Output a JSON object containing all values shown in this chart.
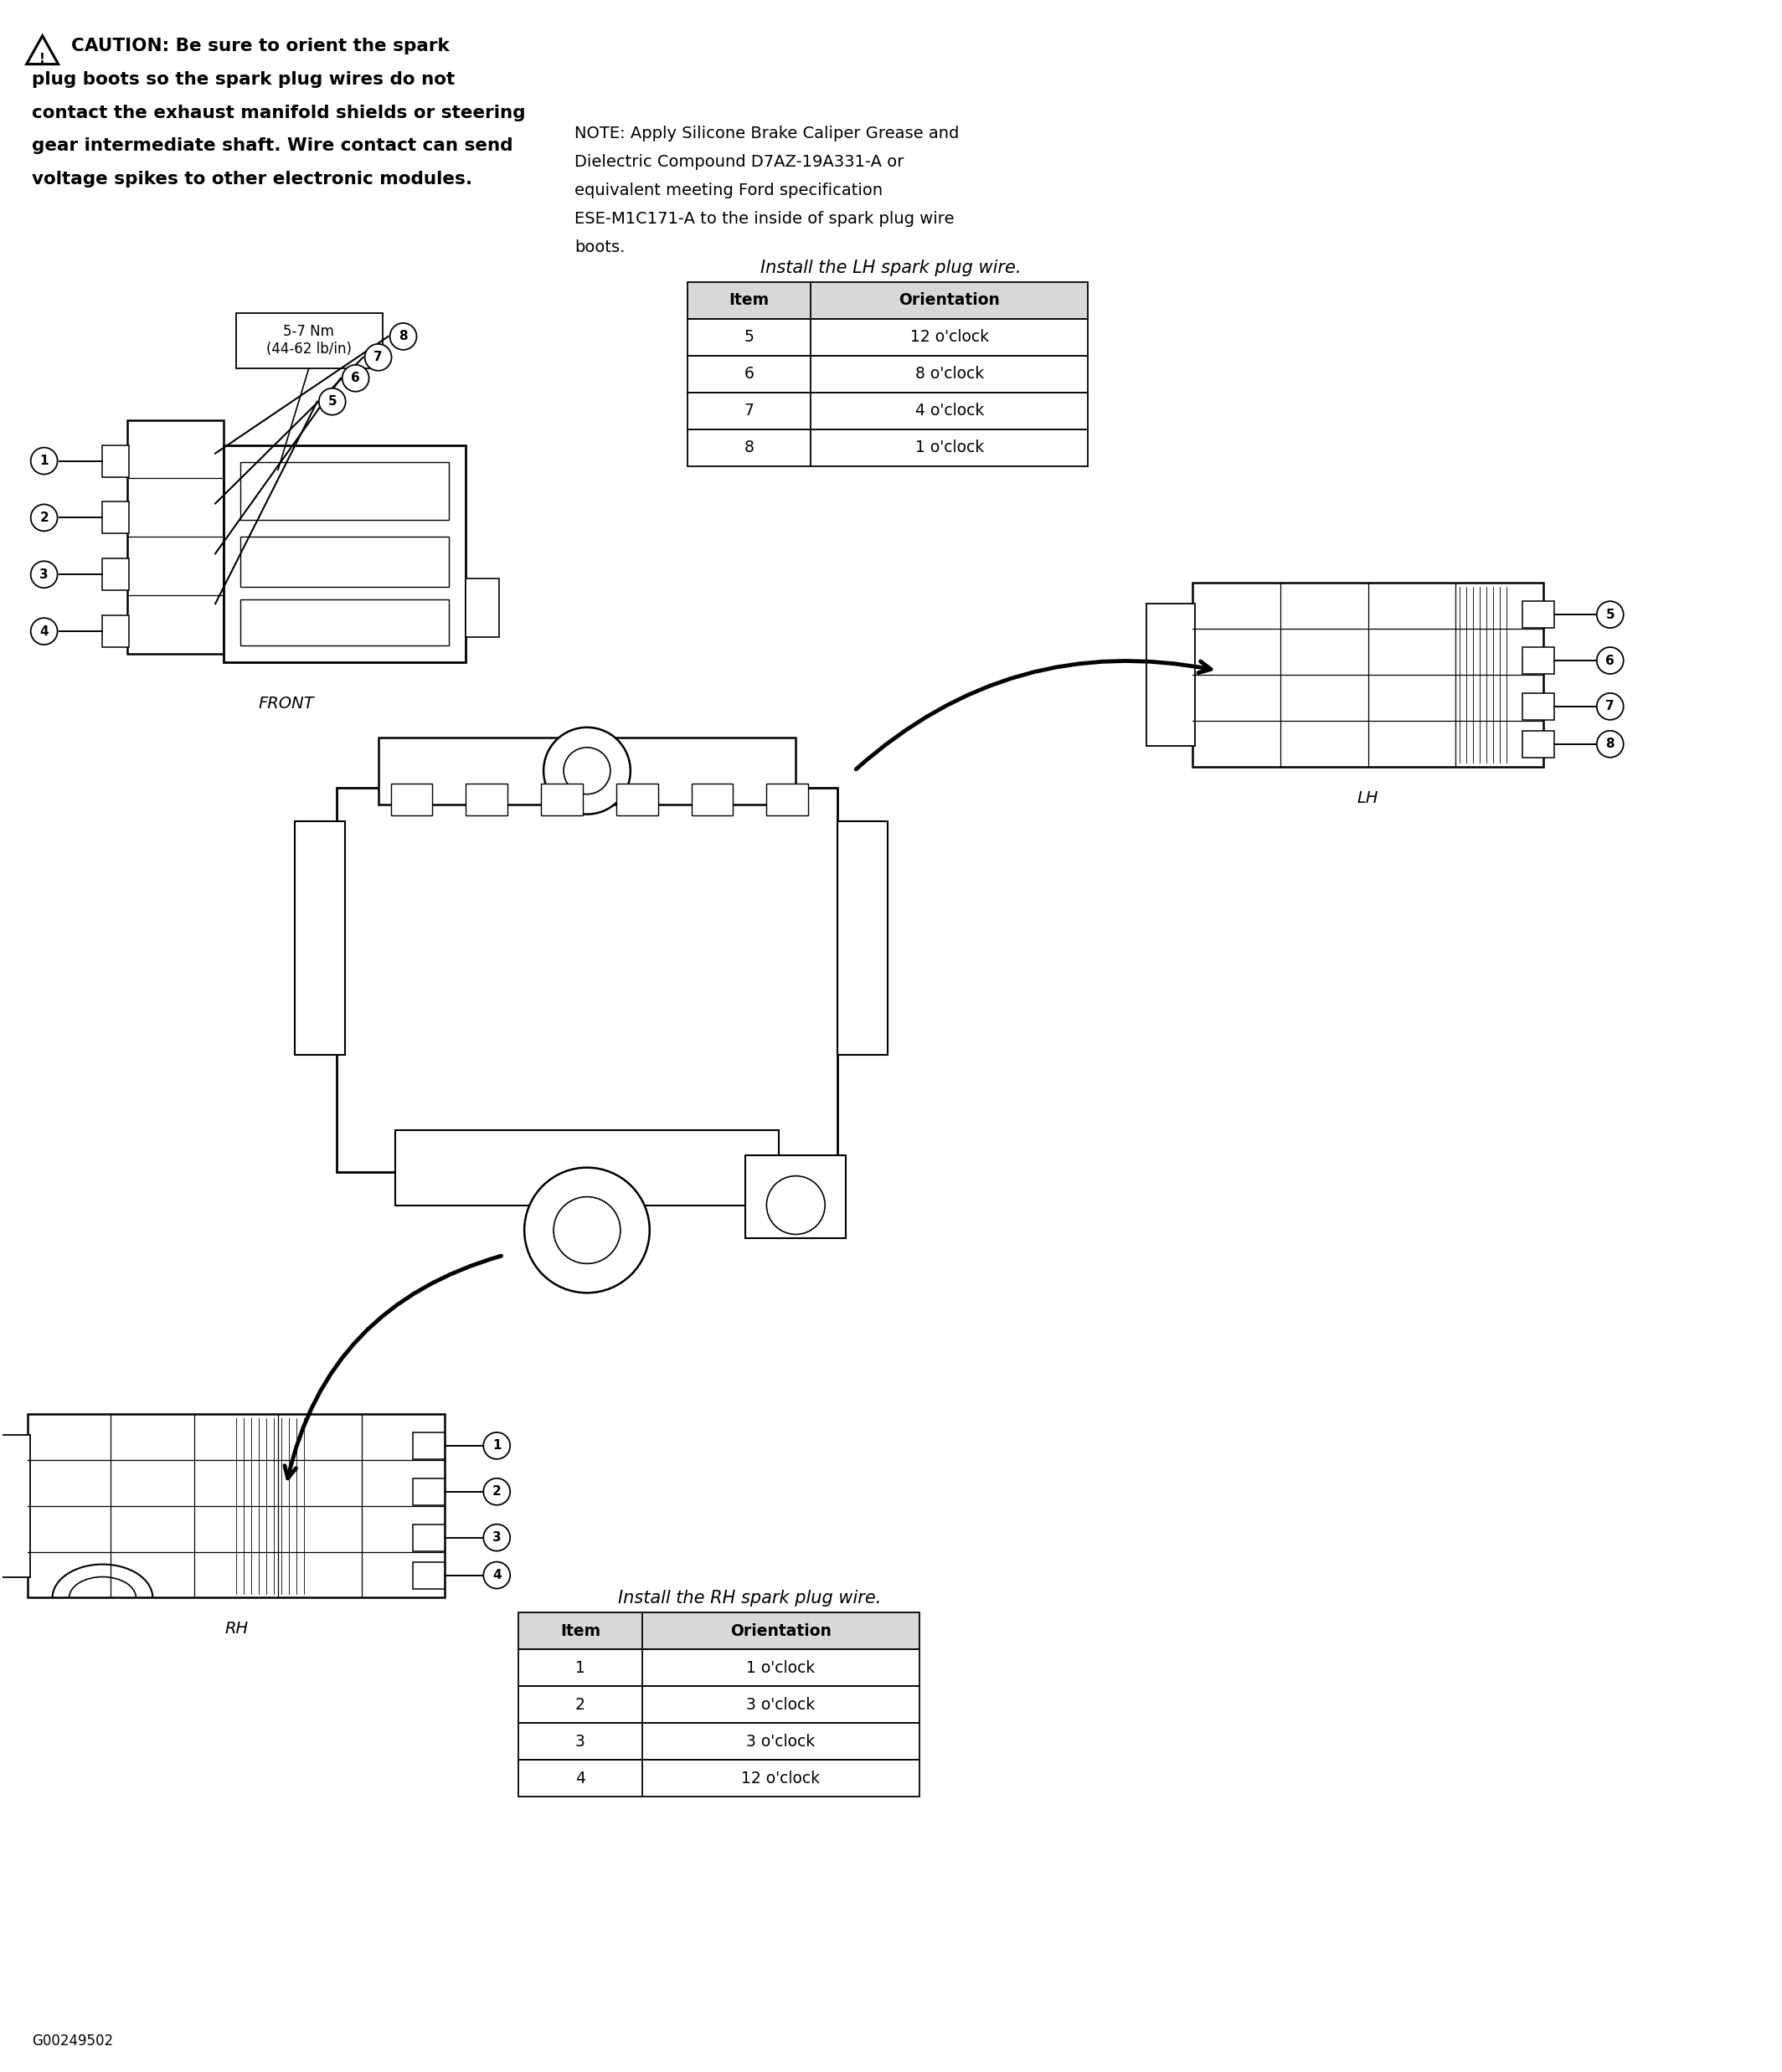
{
  "bg_color": "#ffffff",
  "fig_width": 21.28,
  "fig_height": 24.75,
  "caution_text_lines": [
    "CAUTION: Be sure to orient the spark",
    "plug boots so the spark plug wires do not",
    "contact the exhaust manifold shields or steering",
    "gear intermediate shaft. Wire contact can send",
    "voltage spikes to other electronic modules."
  ],
  "note_text_lines": [
    "NOTE: Apply Silicone Brake Caliper Grease and",
    "Dielectric Compound D7AZ-19A331-A or",
    "equivalent meeting Ford specification",
    "ESE-M1C171-A to the inside of spark plug wire",
    "boots."
  ],
  "lh_table_title": "Install the LH spark plug wire.",
  "lh_table_headers": [
    "Item",
    "Orientation"
  ],
  "lh_table_rows": [
    [
      "5",
      "12 o'clock"
    ],
    [
      "6",
      "8 o'clock"
    ],
    [
      "7",
      "4 o'clock"
    ],
    [
      "8",
      "1 o'clock"
    ]
  ],
  "rh_table_title": "Install the RH spark plug wire.",
  "rh_table_headers": [
    "Item",
    "Orientation"
  ],
  "rh_table_rows": [
    [
      "1",
      "1 o'clock"
    ],
    [
      "2",
      "3 o'clock"
    ],
    [
      "3",
      "3 o'clock"
    ],
    [
      "4",
      "12 o'clock"
    ]
  ],
  "front_label": "FRONT",
  "lh_label": "LH",
  "rh_label": "RH",
  "footer_label": "G00249502",
  "torque_label": "5-7 Nm\n(44-62 lb/in)"
}
